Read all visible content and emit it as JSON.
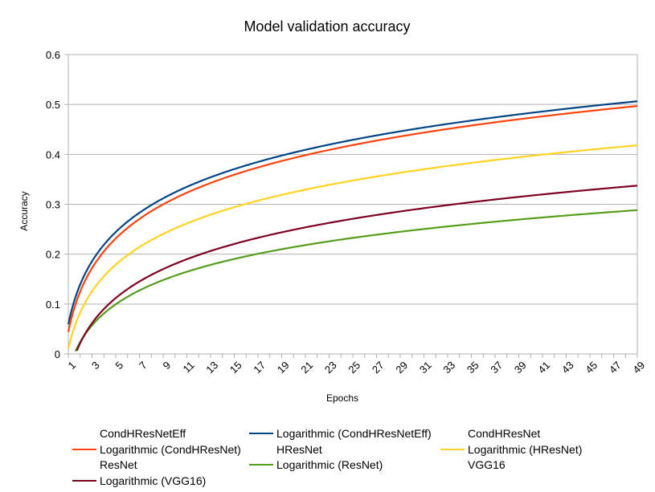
{
  "chart_data": {
    "type": "line",
    "title": "Model validation accuracy",
    "xlabel": "Epochs",
    "ylabel": "Accuracy",
    "ylim": [
      0,
      0.6
    ],
    "yticks": [
      "0",
      "0.1",
      "0.2",
      "0.3",
      "0.4",
      "0.5",
      "0.6"
    ],
    "xlim": [
      1,
      49
    ],
    "xticks": [
      "1",
      "3",
      "5",
      "7",
      "9",
      "11",
      "13",
      "15",
      "17",
      "19",
      "21",
      "23",
      "25",
      "27",
      "29",
      "31",
      "33",
      "35",
      "37",
      "39",
      "41",
      "43",
      "45",
      "47",
      "49"
    ],
    "grid": "horizontal",
    "legend_position": "bottom",
    "series": [
      {
        "name": "Logarithmic (CondHResNetEff)",
        "color": "#004586",
        "fit": "logarithmic",
        "a": 0.0596,
        "b": 0.1148
      },
      {
        "name": "Logarithmic (CondHResNet)",
        "color": "#ff420e",
        "fit": "logarithmic",
        "a": 0.0443,
        "b": 0.1163
      },
      {
        "name": "Logarithmic (HResNet)",
        "color": "#ffd320",
        "fit": "logarithmic",
        "a": 0.0103,
        "b": 0.1048
      },
      {
        "name": "Logarithmic (ResNet)",
        "color": "#579d1c",
        "fit": "logarithmic",
        "a": -0.0336,
        "b": 0.0827
      },
      {
        "name": "Logarithmic (VGG16)",
        "color": "#7e0021",
        "fit": "logarithmic",
        "a": -0.0468,
        "b": 0.0987
      }
    ],
    "legend": [
      {
        "label": "CondHResNetEff",
        "color": ""
      },
      {
        "label": "Logarithmic (CondHResNetEff)",
        "color": "#004586"
      },
      {
        "label": "CondHResNet",
        "color": ""
      },
      {
        "label": "Logarithmic (CondHResNet)",
        "color": "#ff420e"
      },
      {
        "label": "HResNet",
        "color": ""
      },
      {
        "label": "Logarithmic (HResNet)",
        "color": "#ffd320"
      },
      {
        "label": "ResNet",
        "color": ""
      },
      {
        "label": "Logarithmic (ResNet)",
        "color": "#579d1c"
      },
      {
        "label": "VGG16",
        "color": ""
      },
      {
        "label": "Logarithmic (VGG16)",
        "color": "#7e0021"
      }
    ]
  }
}
